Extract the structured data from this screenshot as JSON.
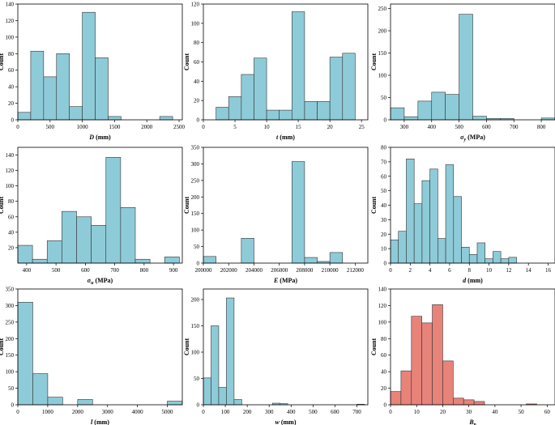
{
  "chart_data": [
    {
      "type": "bar",
      "name": "D",
      "xlabel": {
        "sym": "D",
        "sub": "",
        "unit": " (mm)"
      },
      "ylabel": "Count",
      "xlim": [
        0,
        2550
      ],
      "ylim": [
        0,
        140
      ],
      "xticks": [
        0,
        500,
        1000,
        1500,
        2000,
        2500
      ],
      "xtick_labels": [
        "0",
        "500",
        "1000",
        "1500",
        "2000",
        "2500"
      ],
      "yticks": [
        0,
        20,
        40,
        60,
        80,
        100,
        120,
        140
      ],
      "bin_edges": [
        0,
        200,
        400,
        600,
        800,
        1000,
        1200,
        1400,
        1600,
        1800,
        2000,
        2200,
        2400
      ],
      "values": [
        9,
        83,
        52,
        80,
        16,
        130,
        75,
        4,
        0,
        0,
        0,
        4
      ],
      "color": "#8ecbd8"
    },
    {
      "type": "bar",
      "name": "t",
      "xlabel": {
        "sym": "t",
        "sub": "",
        "unit": " (mm)"
      },
      "ylabel": "Count",
      "xlim": [
        0,
        26
      ],
      "ylim": [
        0,
        120
      ],
      "xticks": [
        0,
        5,
        10,
        15,
        20,
        25
      ],
      "xtick_labels": [
        "0",
        "5",
        "10",
        "15",
        "20",
        "25"
      ],
      "yticks": [
        0,
        20,
        40,
        60,
        80,
        100,
        120
      ],
      "bin_edges": [
        2,
        4,
        6,
        8,
        10,
        12,
        14,
        16,
        18,
        20,
        22,
        24
      ],
      "values": [
        13,
        24,
        47,
        64,
        10,
        10,
        112,
        19,
        19,
        65,
        69
      ],
      "color": "#8ecbd8"
    },
    {
      "type": "bar",
      "name": "sigma_y",
      "xlabel": {
        "sym": "σ",
        "sub": "y",
        "unit": " (MPa)"
      },
      "ylabel": "Count",
      "xlim": [
        250,
        850
      ],
      "ylim": [
        0,
        260
      ],
      "xticks": [
        300,
        400,
        500,
        600,
        700,
        800
      ],
      "xtick_labels": [
        "300",
        "400",
        "500",
        "600",
        "700",
        "800"
      ],
      "yticks": [
        0,
        50,
        100,
        150,
        200,
        250
      ],
      "bin_edges": [
        250,
        300,
        350,
        400,
        450,
        500,
        550,
        600,
        650,
        700,
        750,
        800,
        850
      ],
      "values": [
        27,
        7,
        42,
        62,
        57,
        237,
        8,
        3,
        3,
        0,
        0,
        4
      ],
      "color": "#8ecbd8"
    },
    {
      "type": "bar",
      "name": "sigma_u",
      "xlabel": {
        "sym": "σ",
        "sub": "u",
        "unit": " (MPa)"
      },
      "ylabel": "Count",
      "xlim": [
        370,
        930
      ],
      "ylim": [
        0,
        150
      ],
      "xticks": [
        400,
        500,
        600,
        700,
        800,
        900
      ],
      "xtick_labels": [
        "400",
        "500",
        "600",
        "700",
        "800",
        "900"
      ],
      "yticks": [
        20,
        40,
        60,
        80,
        100,
        120,
        140
      ],
      "bin_edges": [
        370,
        420,
        470,
        520,
        570,
        620,
        670,
        720,
        770,
        820,
        870,
        920
      ],
      "values": [
        23,
        5,
        29,
        67,
        60,
        49,
        137,
        72,
        5,
        0,
        8
      ],
      "color": "#8ecbd8"
    },
    {
      "type": "bar",
      "name": "E",
      "xlabel": {
        "sym": "E",
        "sub": "",
        "unit": " (MPa)"
      },
      "ylabel": "Count",
      "xlim": [
        200000,
        213000
      ],
      "ylim": [
        0,
        350
      ],
      "xticks": [
        200000,
        202000,
        204000,
        206000,
        208000,
        210000,
        212000
      ],
      "xtick_labels": [
        "200000",
        "202000",
        "204000",
        "206000",
        "208000",
        "210000",
        "212000"
      ],
      "yticks": [
        0,
        50,
        100,
        150,
        200,
        250,
        300,
        350
      ],
      "bin_edges": [
        200000,
        201000,
        202000,
        203000,
        204000,
        205000,
        206000,
        207000,
        208000,
        209000,
        210000,
        211000
      ],
      "values": [
        20,
        0,
        0,
        75,
        0,
        0,
        0,
        307,
        17,
        5,
        32
      ],
      "color": "#8ecbd8"
    },
    {
      "type": "bar",
      "name": "d",
      "xlabel": {
        "sym": "d",
        "sub": "",
        "unit": " (mm)"
      },
      "ylabel": "Count",
      "xlim": [
        0,
        16.7
      ],
      "ylim": [
        0,
        80
      ],
      "xticks": [
        0,
        2,
        4,
        6,
        8,
        10,
        12,
        14,
        16
      ],
      "xtick_labels": [
        "0",
        "2",
        "4",
        "6",
        "8",
        "10",
        "12",
        "14",
        "16"
      ],
      "yticks": [
        0,
        10,
        20,
        30,
        40,
        50,
        60,
        70,
        80
      ],
      "bin_edges": [
        0,
        0.8,
        1.6,
        2.4,
        3.2,
        4.0,
        4.8,
        5.6,
        6.4,
        7.2,
        8.0,
        8.8,
        9.6,
        10.4,
        11.2,
        12.0,
        12.8,
        13.6,
        14.4,
        15.2,
        16.0
      ],
      "values": [
        16,
        22,
        72,
        41,
        57,
        65,
        17,
        68,
        46,
        11,
        6,
        14,
        3,
        8,
        3,
        4,
        0,
        0,
        0,
        0
      ],
      "color": "#8ecbd8"
    },
    {
      "type": "bar",
      "name": "l",
      "xlabel": {
        "sym": "l",
        "sub": "",
        "unit": " (mm)"
      },
      "ylabel": "Count",
      "xlim": [
        0,
        5500
      ],
      "ylim": [
        0,
        350
      ],
      "xticks": [
        0,
        1000,
        2000,
        3000,
        4000,
        5000
      ],
      "xtick_labels": [
        "0",
        "1000",
        "2000",
        "3000",
        "4000",
        "5000"
      ],
      "yticks": [
        0,
        50,
        100,
        150,
        200,
        250,
        300,
        350
      ],
      "bin_edges": [
        0,
        500,
        1000,
        1500,
        2000,
        2500,
        3000,
        3500,
        4000,
        4500,
        5000,
        5500
      ],
      "values": [
        310,
        94,
        23,
        0,
        16,
        0,
        0,
        0,
        0,
        0,
        11
      ],
      "color": "#8ecbd8"
    },
    {
      "type": "bar",
      "name": "w",
      "xlabel": {
        "sym": "w",
        "sub": "",
        "unit": " (mm)"
      },
      "ylabel": "Count",
      "xlim": [
        0,
        750
      ],
      "ylim": [
        0,
        220
      ],
      "xticks": [
        0,
        100,
        200,
        300,
        400,
        500,
        600,
        700
      ],
      "xtick_labels": [
        "0",
        "100",
        "200",
        "300",
        "400",
        "500",
        "600",
        "700"
      ],
      "yticks": [
        0,
        50,
        100,
        150,
        200
      ],
      "bin_edges": [
        0,
        35,
        70,
        105,
        140,
        175,
        210,
        245,
        280,
        315,
        350,
        385,
        420,
        455,
        490,
        525,
        560,
        595,
        630,
        665,
        700,
        735
      ],
      "values": [
        51,
        150,
        33,
        203,
        10,
        0,
        0,
        0,
        0,
        3,
        2,
        0,
        0,
        0,
        0,
        0,
        0,
        0,
        0,
        0,
        1
      ],
      "color": "#8ecbd8"
    },
    {
      "type": "bar",
      "name": "B_p",
      "xlabel": {
        "sym": "B",
        "sub": "p",
        "unit": ""
      },
      "ylabel": "Count",
      "xlim": [
        0,
        63
      ],
      "ylim": [
        0,
        140
      ],
      "xticks": [
        0,
        10,
        20,
        30,
        40,
        50,
        60
      ],
      "xtick_labels": [
        "0",
        "10",
        "20",
        "30",
        "40",
        "50",
        "60"
      ],
      "yticks": [
        0,
        20,
        40,
        60,
        80,
        100,
        120,
        140
      ],
      "bin_edges": [
        0,
        4,
        8,
        12,
        16,
        20,
        24,
        28,
        32,
        36,
        40,
        44,
        48,
        52,
        56,
        60
      ],
      "values": [
        16,
        41,
        107,
        99,
        121,
        53,
        8,
        6,
        4,
        0,
        0,
        0,
        0,
        1,
        0
      ],
      "color": "#e8837a"
    }
  ]
}
